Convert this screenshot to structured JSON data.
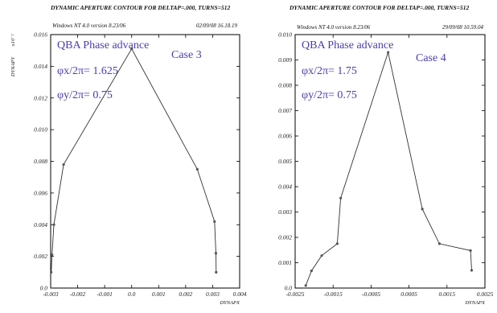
{
  "chart_data": [
    {
      "type": "line",
      "title": "DYNAMIC APERTURE CONTOUR FOR DELTAP=.000, TURNS=512",
      "header_left": "Windows NT 4.0 version 8.23/06",
      "header_right": "02/09/08  16.18.19",
      "xlabel": "DYNAPX",
      "ylabel": "DYNAPY",
      "ylabel_extra": "x10⁻²",
      "xlim": [
        -0.003,
        0.004
      ],
      "ylim": [
        0.0,
        0.016
      ],
      "xticks": [
        -0.003,
        -0.002,
        -0.001,
        0.0,
        0.001,
        0.002,
        0.003,
        0.004
      ],
      "xtick_labels": [
        "-0.003",
        "-0.002",
        "-0.001",
        "0.0",
        "0.001",
        "0.002",
        "0.003",
        "0.004"
      ],
      "yticks": [
        0.0,
        0.002,
        0.004,
        0.006,
        0.008,
        0.01,
        0.012,
        0.014,
        0.016
      ],
      "ytick_labels": [
        "0.0",
        "0.002",
        "0.004",
        "0.006",
        "0.008",
        "0.010",
        "0.012",
        "0.014",
        "0.016"
      ],
      "x": [
        -0.00298,
        -0.00295,
        -0.00288,
        -0.00252,
        0.0,
        0.00243,
        0.00307,
        0.00312,
        0.00313
      ],
      "y": [
        0.001,
        0.0021,
        0.004,
        0.0078,
        0.0151,
        0.0075,
        0.0042,
        0.0022,
        0.001
      ],
      "annotations": [
        "QBA Phase advance",
        "Case 3",
        "φx/2π= 1.625",
        "φy/2π= 0.75"
      ]
    },
    {
      "type": "line",
      "title": "DYNAMIC APERTURE CONTOUR FOR DELTAP=.000, TURNS=512",
      "header_left": "Windows NT 4.0 version 8.23/06",
      "header_right": "29/09/08  10.59.04",
      "xlabel": "DYNAPX",
      "ylabel": "",
      "xlim": [
        -0.0025,
        0.0025
      ],
      "ylim": [
        0.0,
        0.01
      ],
      "xticks": [
        -0.0025,
        -0.0015,
        -0.0005,
        0.0005,
        0.0015,
        0.0025
      ],
      "xtick_labels": [
        "-0.0025",
        "-0.0015",
        "-0.0005",
        "0.0005",
        "0.0015",
        "0.0025"
      ],
      "yticks": [
        0.0,
        0.001,
        0.002,
        0.003,
        0.004,
        0.005,
        0.006,
        0.007,
        0.008,
        0.009,
        0.01
      ],
      "ytick_labels": [
        "0.0",
        "0.001",
        "0.002",
        "0.003",
        "0.004",
        "0.005",
        "0.006",
        "0.007",
        "0.008",
        "0.009",
        "0.010"
      ],
      "x": [
        -0.00222,
        -0.00207,
        -0.0018,
        -0.00139,
        -0.0013,
        -5e-05,
        0.00085,
        0.0013,
        0.00212,
        0.00215
      ],
      "y": [
        0.0001,
        0.00068,
        0.00128,
        0.00175,
        0.00355,
        0.0093,
        0.00312,
        0.00175,
        0.00148,
        0.0007
      ],
      "annotations": [
        "QBA Phase advance",
        "Case 4",
        "φx/2π= 1.75",
        "φy/2π= 0.75"
      ]
    }
  ]
}
